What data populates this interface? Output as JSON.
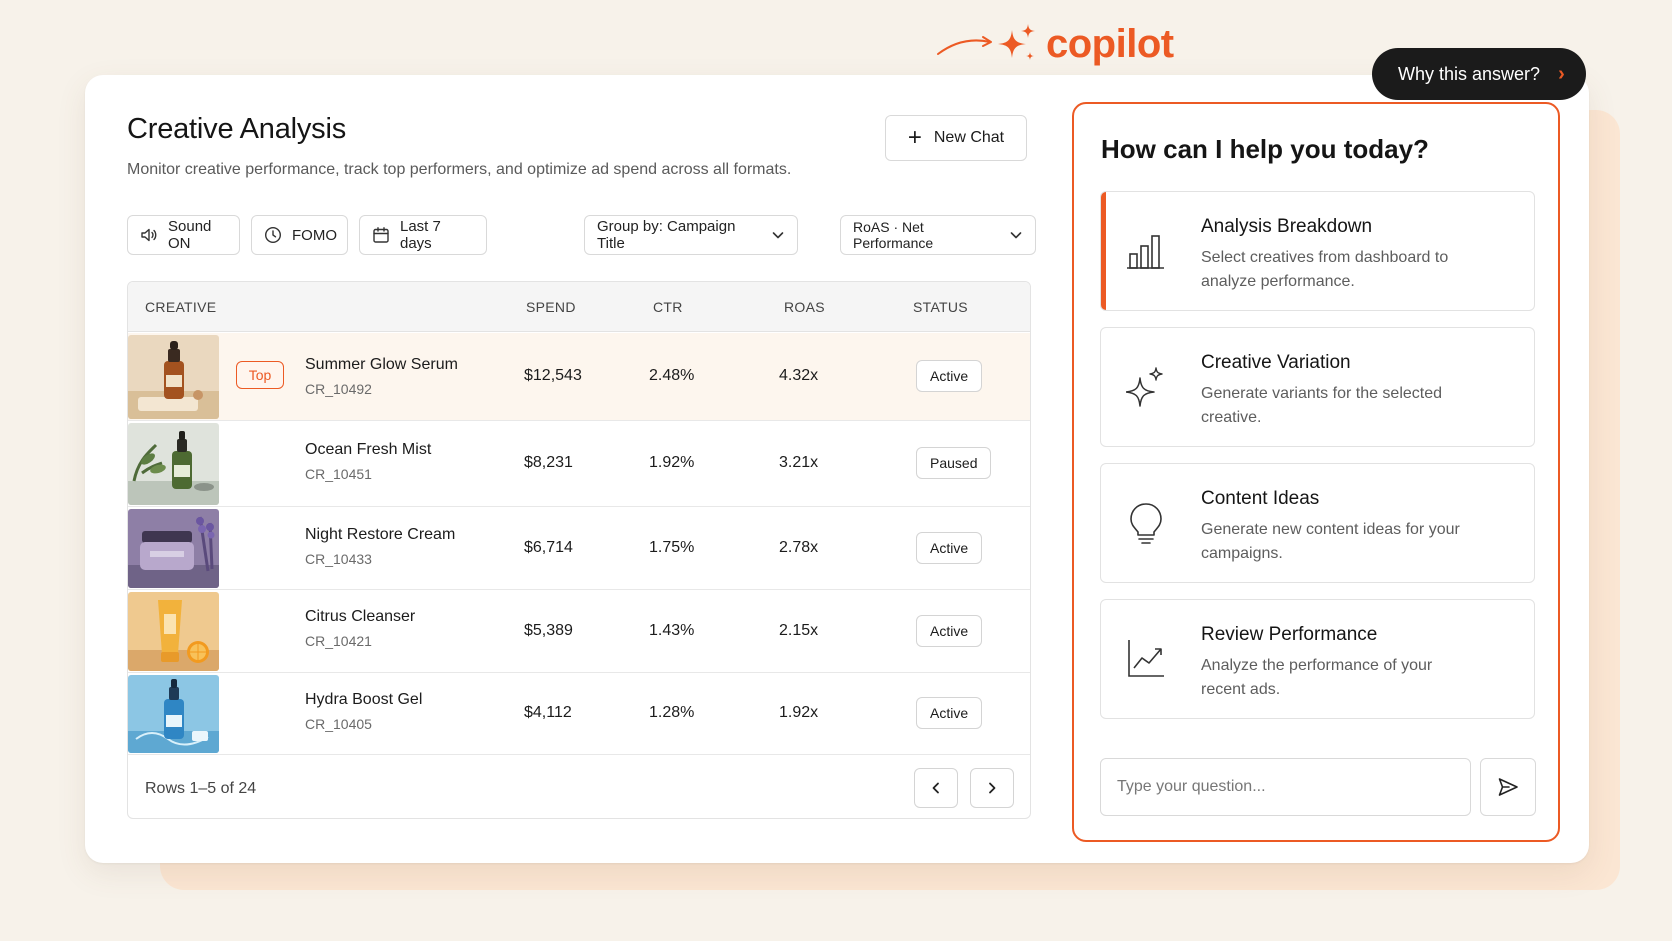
{
  "brand": {
    "name": "copilot",
    "accent": "#ec5a24"
  },
  "why_button": {
    "label": "Why this answer?",
    "icon": "chevron-right-icon"
  },
  "page": {
    "title": "Creative Analysis",
    "subtitle": "Monitor creative performance, track top performers, and optimize ad spend across all formats.",
    "new_chat_label": "New Chat"
  },
  "filters": {
    "sound": "Sound ON",
    "fomo": "FOMO",
    "date_range": "Last 7 days",
    "group_by": "Group by: Campaign Title",
    "metric": "RoAS · Net Performance"
  },
  "table": {
    "headers": {
      "creative": "CREATIVE",
      "spend": "SPEND",
      "ctr": "CTR",
      "roas": "ROAS",
      "status": "STATUS"
    },
    "rows": [
      {
        "name": "Summer Glow Serum",
        "id": "CR_10492",
        "spend": "$12,543",
        "ctr": "2.48%",
        "roas": "4.32x",
        "status": "Active",
        "badge": "Top"
      },
      {
        "name": "Ocean Fresh Mist",
        "id": "CR_10451",
        "spend": "$8,231",
        "ctr": "1.92%",
        "roas": "3.21x",
        "status": "Paused"
      },
      {
        "name": "Night Restore Cream",
        "id": "CR_10433",
        "spend": "$6,714",
        "ctr": "1.75%",
        "roas": "2.78x",
        "status": "Active"
      },
      {
        "name": "Citrus Cleanser",
        "id": "CR_10421",
        "spend": "$5,389",
        "ctr": "1.43%",
        "roas": "2.15x",
        "status": "Active"
      },
      {
        "name": "Hydra Boost Gel",
        "id": "CR_10405",
        "spend": "$4,112",
        "ctr": "1.28%",
        "roas": "1.92x",
        "status": "Active"
      }
    ],
    "footer": "Rows 1–5 of 24"
  },
  "copilot": {
    "heading": "How can I help you today?",
    "options": [
      {
        "title": "Analysis Breakdown",
        "desc": "Select creatives from dashboard to analyze performance.",
        "icon": "bar-chart-icon"
      },
      {
        "title": "Creative Variation",
        "desc": "Generate variants for the selected creative.",
        "icon": "sparkle-icon"
      },
      {
        "title": "Content Ideas",
        "desc": "Generate new content ideas for your campaigns.",
        "icon": "lightbulb-icon"
      },
      {
        "title": "Review Performance",
        "desc": "Analyze the performance of your recent ads.",
        "icon": "trend-chart-icon"
      }
    ],
    "input_placeholder": "Type your question..."
  }
}
